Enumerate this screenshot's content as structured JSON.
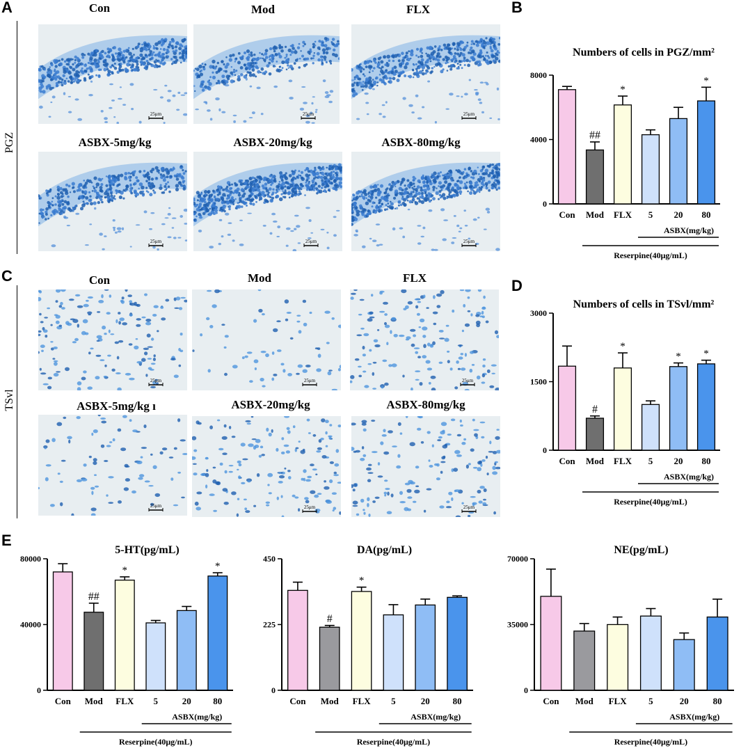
{
  "panels": {
    "A": "A",
    "B": "B",
    "C": "C",
    "D": "D",
    "E": "E",
    "pgz_side_label": "PGZ",
    "tsvl_side_label": "TSvl"
  },
  "micrographs": {
    "row_a1": [
      "Con",
      "Mod",
      "FLX"
    ],
    "row_a2": [
      "ASBX-5mg/kg",
      "ASBX-20mg/kg",
      "ASBX-80mg/kg"
    ],
    "row_c1": [
      "Con",
      "Mod",
      "FLX"
    ],
    "row_c2": [
      "ASBX-5mg/kg ı",
      "ASBX-20mg/kg",
      "ASBX-80mg/kg"
    ],
    "scale_bar": "25μm"
  },
  "colors": {
    "con": "#f7c9e8",
    "mod": "#6f6f6f",
    "mod_light": "#9a9a9e",
    "flx": "#fdfde0",
    "asbx5": "#cfe1fb",
    "asbx20": "#8fbdf5",
    "asbx80": "#4a94ec",
    "stain_dark": "#1e5fb0",
    "stain_bg": "#e8eef1"
  },
  "chart_data": [
    {
      "id": "B",
      "type": "bar",
      "title": "Numbers of cells in PGZ/mm²",
      "categories": [
        "Con",
        "Mod",
        "FLX",
        "5",
        "20",
        "80"
      ],
      "values": [
        7100,
        3350,
        6150,
        4300,
        5300,
        6400
      ],
      "errors": [
        200,
        500,
        550,
        300,
        700,
        850
      ],
      "marks": [
        "",
        "##",
        "*",
        "",
        "",
        "*"
      ],
      "ylim": [
        0,
        8000
      ],
      "yticks": [
        "0",
        "4000",
        "8000"
      ],
      "group_label": "ASBX(mg/kg)",
      "treatment_label": "Reserpine(40μg/mL)"
    },
    {
      "id": "D",
      "type": "bar",
      "title": "Numbers of cells in TSvl/mm²",
      "categories": [
        "Con",
        "Mod",
        "FLX",
        "5",
        "20",
        "80"
      ],
      "values": [
        1840,
        700,
        1800,
        1000,
        1830,
        1890
      ],
      "errors": [
        440,
        50,
        330,
        80,
        80,
        80
      ],
      "marks": [
        "",
        "#",
        "*",
        "",
        "*",
        "*"
      ],
      "ylim": [
        0,
        3000
      ],
      "yticks": [
        "0",
        "1500",
        "3000"
      ],
      "group_label": "ASBX(mg/kg)",
      "treatment_label": "Reserpine(40μg/mL)"
    },
    {
      "id": "E1",
      "type": "bar",
      "title": "5-HT(pg/mL)",
      "categories": [
        "Con",
        "Mod",
        "FLX",
        "5",
        "20",
        "80"
      ],
      "values": [
        72000,
        47500,
        67000,
        41000,
        48500,
        69500
      ],
      "errors": [
        5000,
        5500,
        2000,
        1500,
        2500,
        2000
      ],
      "marks": [
        "",
        "##",
        "*",
        "",
        "",
        "*"
      ],
      "ylim": [
        0,
        80000
      ],
      "yticks": [
        "0",
        "40000",
        "80000"
      ],
      "group_label": "ASBX(mg/kg)",
      "treatment_label": "Reserpine(40μg/mL)"
    },
    {
      "id": "E2",
      "type": "bar",
      "title": "DA(pg/mL)",
      "categories": [
        "Con",
        "Mod",
        "FLX",
        "5",
        "20",
        "80"
      ],
      "values": [
        342,
        216,
        338,
        258,
        292,
        318
      ],
      "errors": [
        28,
        6,
        15,
        35,
        20,
        5
      ],
      "marks": [
        "",
        "#",
        "*",
        "",
        "",
        ""
      ],
      "ylim": [
        0,
        450
      ],
      "yticks": [
        "0",
        "225",
        "450"
      ],
      "group_label": "ASBX(mg/kg)",
      "treatment_label": "Reserpine(40μg/mL)"
    },
    {
      "id": "E3",
      "type": "bar",
      "title": "NE(pg/mL)",
      "categories": [
        "Con",
        "Mod",
        "FLX",
        "5",
        "20",
        "80"
      ],
      "values": [
        50000,
        31500,
        35000,
        39500,
        27000,
        39000
      ],
      "errors": [
        14500,
        4000,
        4000,
        4000,
        3500,
        9500
      ],
      "marks": [
        "",
        "",
        "",
        "",
        "",
        ""
      ],
      "ylim": [
        0,
        70000
      ],
      "yticks": [
        "0",
        "35000",
        "70000"
      ],
      "group_label": "ASBX(mg/kg)",
      "treatment_label": "Reserpine(40μg/mL)"
    }
  ]
}
